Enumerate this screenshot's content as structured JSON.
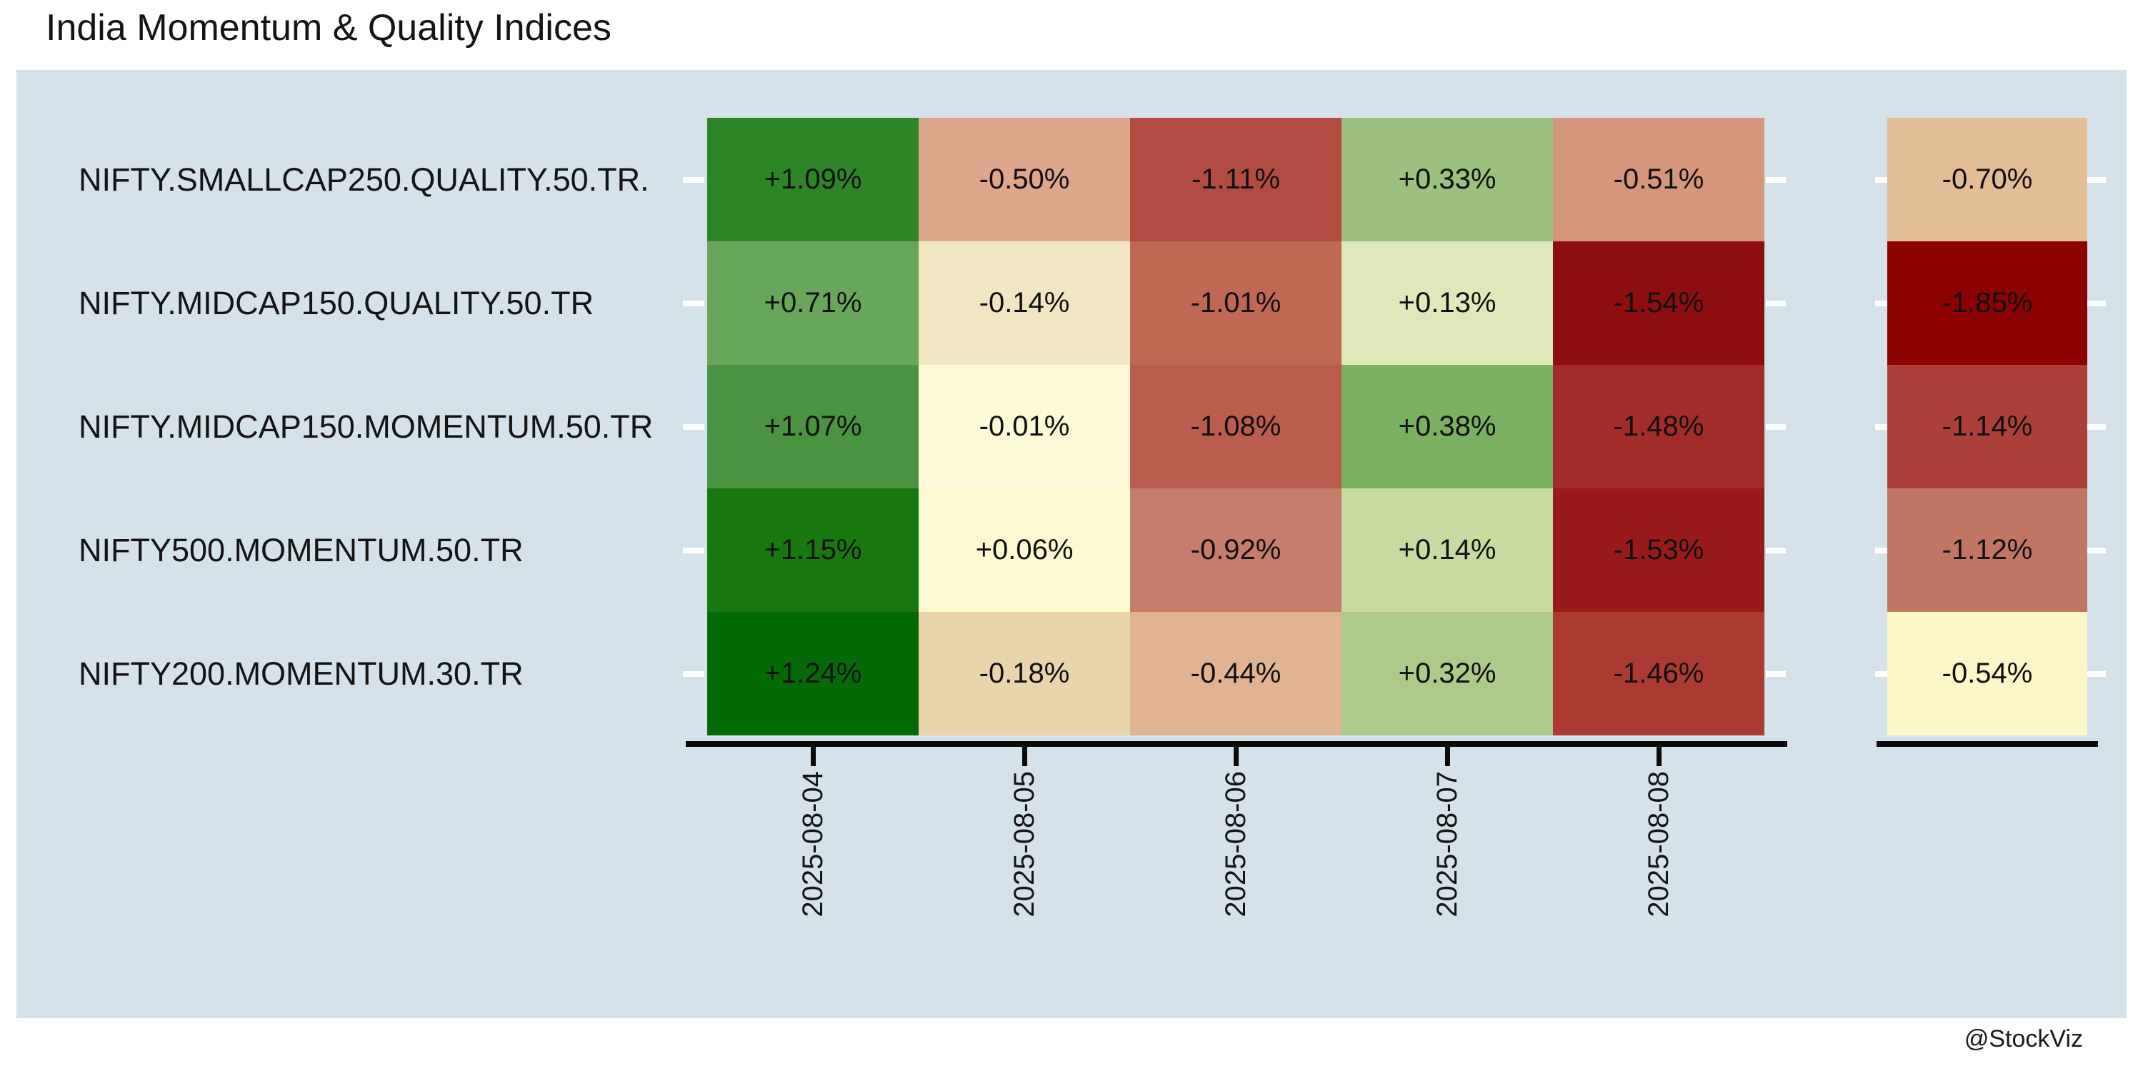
{
  "title": "India Momentum & Quality Indices",
  "watermark": "@StockViz",
  "chart_data": {
    "type": "heatmap",
    "title": "India Momentum & Quality Indices",
    "rows": [
      "NIFTY.SMALLCAP250.QUALITY.50.TR.",
      "NIFTY.MIDCAP150.QUALITY.50.TR",
      "NIFTY.MIDCAP150.MOMENTUM.50.TR",
      "NIFTY500.MOMENTUM.50.TR",
      "NIFTY200.MOMENTUM.30.TR"
    ],
    "columns": [
      "2025-08-04",
      "2025-08-05",
      "2025-08-06",
      "2025-08-07",
      "2025-08-08"
    ],
    "values": [
      [
        1.09,
        -0.5,
        -1.11,
        0.33,
        -0.51
      ],
      [
        0.71,
        -0.14,
        -1.01,
        0.13,
        -1.54
      ],
      [
        1.07,
        -0.01,
        -1.08,
        0.38,
        -1.48
      ],
      [
        1.15,
        0.06,
        -0.92,
        0.14,
        -1.53
      ],
      [
        1.24,
        -0.18,
        -0.44,
        0.32,
        -1.46
      ]
    ],
    "summary_values": [
      -0.7,
      -1.85,
      -1.14,
      -1.12,
      -0.54
    ],
    "cell_labels": [
      [
        "+1.09%",
        "-0.50%",
        "-1.11%",
        "+0.33%",
        "-0.51%"
      ],
      [
        "+0.71%",
        "-0.14%",
        "-1.01%",
        "+0.13%",
        "-1.54%"
      ],
      [
        "+1.07%",
        "-0.01%",
        "-1.08%",
        "+0.38%",
        "-1.48%"
      ],
      [
        "+1.15%",
        "+0.06%",
        "-0.92%",
        "+0.14%",
        "-1.53%"
      ],
      [
        "+1.24%",
        "-0.18%",
        "-0.44%",
        "+0.32%",
        "-1.46%"
      ]
    ],
    "summary_labels": [
      "-0.70%",
      "-1.85%",
      "-1.14%",
      "-1.12%",
      "-0.54%"
    ],
    "cell_colors": [
      [
        "#2E8526",
        "#DDA78C",
        "#B24B42",
        "#9CC07D",
        "#D5977C"
      ],
      [
        "#68A65A",
        "#F2E5C1",
        "#BF6955",
        "#DEE8B8",
        "#8E0E10"
      ],
      [
        "#4A9340",
        "#FDFBD7",
        "#BA5D4E",
        "#7AB062",
        "#A42C28"
      ],
      [
        "#19770F",
        "#FDFAD2",
        "#C57E6B",
        "#C7DBA1",
        "#991B19"
      ],
      [
        "#046A06",
        "#EAD4AC",
        "#E0B493",
        "#AECA88",
        "#AD3A32"
      ]
    ],
    "summary_colors": [
      "#E2BD95",
      "#8C0101",
      "#AC4038",
      "#C17663",
      "#FBF7C8"
    ],
    "panel_background": "#D6E2EA",
    "axis_color": "#0A0A0A",
    "tick_color": "#FFFFFF",
    "text_color": "#141414",
    "legend": "none",
    "x_tick_rotation_deg": 90
  }
}
